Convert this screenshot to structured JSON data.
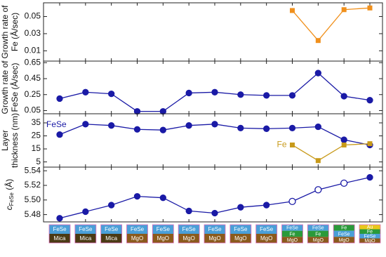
{
  "chart_data": [
    {
      "type": "line",
      "ylabel": [
        "Growth rate of",
        "Fe (Å/sec)"
      ],
      "ylim": [
        -0.002,
        0.066
      ],
      "yticks": [
        0.01,
        0.03,
        0.05
      ],
      "series": [
        {
          "color": "#f0901c",
          "marker": "square",
          "values": [
            null,
            null,
            null,
            null,
            null,
            null,
            null,
            null,
            null,
            0.057,
            0.022,
            0.058,
            0.06
          ]
        }
      ]
    },
    {
      "type": "line",
      "ylabel": [
        "Growth rate of",
        "FeSe (Å/sec)"
      ],
      "ylim": [
        0.01,
        0.67
      ],
      "yticks": [
        0.05,
        0.25,
        0.45,
        0.65
      ],
      "series": [
        {
          "color": "#1a1aa6",
          "marker": "circle",
          "values": [
            0.2,
            0.28,
            0.26,
            0.04,
            0.04,
            0.27,
            0.28,
            0.25,
            0.24,
            0.24,
            0.52,
            0.23,
            0.18
          ]
        }
      ]
    },
    {
      "type": "line",
      "ylabel": [
        "Layer",
        "thickness (nm)"
      ],
      "ylim": [
        1,
        42
      ],
      "yticks": [
        5,
        15,
        25,
        35
      ],
      "series": [
        {
          "name": "FeSe",
          "color": "#1a1aa6",
          "marker": "circle",
          "values": [
            26,
            34,
            33,
            30,
            29.5,
            33,
            34,
            31,
            30.5,
            31,
            32,
            22,
            18
          ]
        },
        {
          "name": "Fe",
          "color": "#c89a1a",
          "marker": "square",
          "values": [
            null,
            null,
            null,
            null,
            null,
            null,
            null,
            null,
            null,
            18,
            6,
            18,
            19
          ]
        }
      ]
    },
    {
      "type": "line",
      "ylabel": [
        "c",
        "FeSe",
        " (Å)"
      ],
      "ylim": [
        5.47,
        5.545
      ],
      "yticks": [
        5.48,
        {
          "value": 5.5,
          "label": "5.50"
        },
        5.52,
        5.54
      ],
      "series": [
        {
          "color": "#1a1aa6",
          "marker": "circle",
          "open": [
            false,
            false,
            false,
            false,
            false,
            false,
            false,
            false,
            false,
            true,
            true,
            true,
            false
          ],
          "values": [
            5.475,
            5.484,
            5.493,
            5.505,
            5.503,
            5.485,
            5.482,
            5.49,
            5.493,
            5.498,
            5.514,
            5.523,
            5.531
          ]
        }
      ]
    }
  ],
  "samples": [
    [
      "FeSe",
      "Mica"
    ],
    [
      "FeSe",
      "Mica"
    ],
    [
      "FeSe",
      "Mica"
    ],
    [
      "FeSe",
      "MgO"
    ],
    [
      "FeSe",
      "MgO"
    ],
    [
      "FeSe",
      "MgO"
    ],
    [
      "FeSe",
      "MgO"
    ],
    [
      "FeSe",
      "MgO"
    ],
    [
      "FeSe",
      "MgO"
    ],
    [
      "FeSe",
      "Fe",
      "MgO"
    ],
    [
      "FeSe",
      "Fe",
      "MgO"
    ],
    [
      "Fe",
      "FeSe",
      "MgO"
    ],
    [
      "Au",
      "Fe",
      "FeSe",
      "MgO"
    ]
  ],
  "layer_colors": {
    "FeSe": "#4a9fd8",
    "Mica": "#4a3a14",
    "MgO": "#8a5a1c",
    "Fe": "#2a9a3a",
    "Au": "#e8c81a"
  }
}
